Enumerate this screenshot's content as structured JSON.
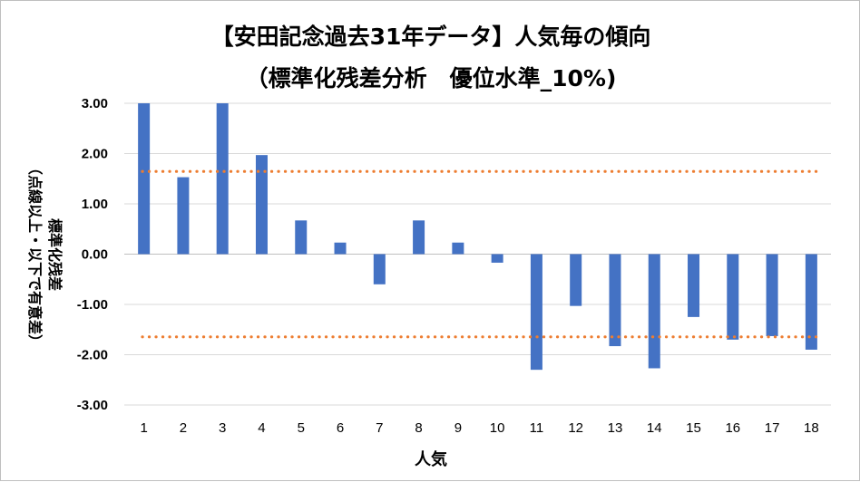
{
  "chart_data": {
    "type": "bar",
    "title_line1": "【安田記念過去31年データ】人気毎の傾向",
    "title_line2": "（標準化残差分析　優位水準_10%)",
    "xlabel": "人気",
    "ylabel_line1": "標準化残差",
    "ylabel_line2": "（点線以上・以下で有意差）",
    "categories": [
      "1",
      "2",
      "3",
      "4",
      "5",
      "6",
      "7",
      "8",
      "9",
      "10",
      "11",
      "12",
      "13",
      "14",
      "15",
      "16",
      "17",
      "18"
    ],
    "values": [
      3.0,
      1.53,
      3.0,
      1.97,
      0.67,
      0.23,
      -0.6,
      0.67,
      0.23,
      -0.17,
      -2.3,
      -1.03,
      -1.83,
      -2.27,
      -1.25,
      -1.7,
      -1.63,
      -1.9
    ],
    "ylim": [
      -3.0,
      3.0
    ],
    "yticks": [
      "3.00",
      "2.00",
      "1.00",
      "0.00",
      "-1.00",
      "-2.00",
      "-3.00"
    ],
    "thresholds": [
      1.645,
      -1.645
    ],
    "bar_color": "#4472C4",
    "threshold_color": "#ED7D31",
    "grid": true
  }
}
